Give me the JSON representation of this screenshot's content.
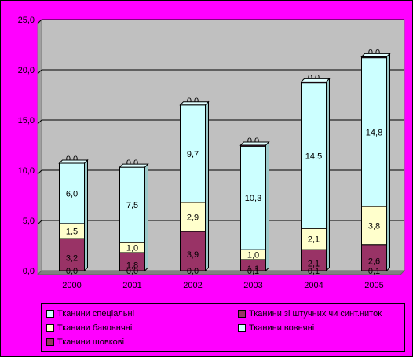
{
  "chart_data": {
    "type": "bar",
    "stacked": true,
    "categories": [
      "2000",
      "2001",
      "2002",
      "2003",
      "2004",
      "2005"
    ],
    "ylim": [
      0,
      25
    ],
    "yticks": [
      "0,0",
      "5,0",
      "10,0",
      "15,0",
      "20,0",
      "25,0"
    ],
    "grid": true,
    "legend_position": "bottom",
    "series": [
      {
        "name": "Тканини шовкові",
        "color": "#993366",
        "values": [
          3.2,
          1.8,
          3.9,
          1.1,
          2.1,
          2.6
        ],
        "labels": [
          "3,2",
          "1,8",
          "3,9",
          "1,1",
          "2,1",
          "2,6"
        ]
      },
      {
        "name": "Тканини бавовняні",
        "color": "#FFFFCC",
        "values": [
          1.5,
          1.0,
          2.9,
          1.0,
          2.1,
          3.8
        ],
        "labels": [
          "1,5",
          "1,0",
          "2,9",
          "1,0",
          "2,1",
          "3,8"
        ]
      },
      {
        "name": "Тканини вовняні",
        "color": "#CCFFFF",
        "values": [
          6.0,
          7.5,
          9.7,
          10.3,
          14.5,
          14.8
        ],
        "labels": [
          "6,0",
          "7,5",
          "9,7",
          "10,3",
          "14,5",
          "14,8"
        ]
      },
      {
        "name": "Тканини зі штучних чи синт.ниток",
        "color": "#993366",
        "values": [
          0.0,
          0.0,
          0.0,
          0.1,
          0.1,
          0.1
        ],
        "labels": [
          "0,0",
          "0,0",
          "0,0",
          "0,1",
          "0,1",
          "0,1"
        ]
      },
      {
        "name": "Тканини спеціальні",
        "color": "#CCFFFF",
        "values": [
          0.0,
          0.0,
          0.0,
          0.0,
          0.0,
          0.0
        ],
        "labels": [
          "0,0",
          "0,0",
          "0,0",
          "0,0",
          "0,0",
          "0,0"
        ]
      }
    ],
    "legend_order": [
      4,
      3,
      1,
      2,
      0
    ]
  },
  "colors": {
    "background": "#FF00FF",
    "plot_area": "#C0C0C0"
  }
}
